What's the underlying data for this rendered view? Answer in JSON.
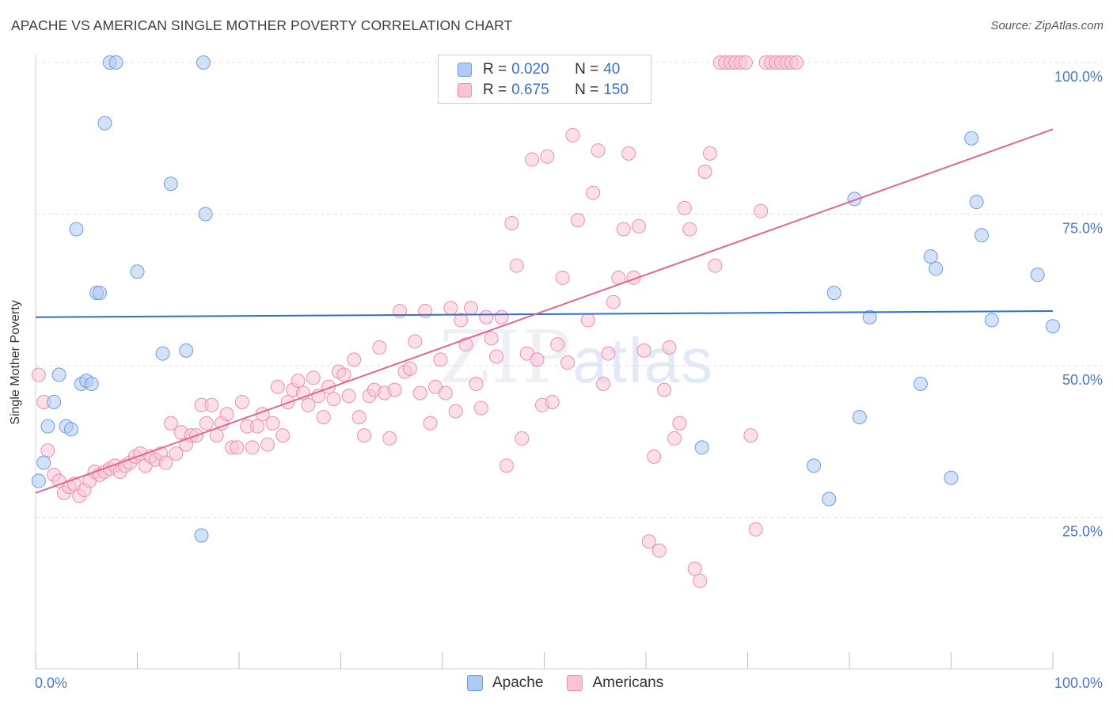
{
  "title": "APACHE VS AMERICAN SINGLE MOTHER POVERTY CORRELATION CHART",
  "source": "Source: ZipAtlas.com",
  "watermark": {
    "zip": "ZIP",
    "atlas": "atlas"
  },
  "legend": {
    "r_label": "R =",
    "n_label": "N =",
    "rows": [
      {
        "name": "Apache",
        "r": "0.020",
        "n": "40",
        "fill": "#aecbf3",
        "stroke": "#6f9ce0"
      },
      {
        "name": "Americans",
        "r": "0.675",
        "n": "150",
        "fill": "#f9c4d5",
        "stroke": "#ec8fae"
      }
    ]
  },
  "chart_data": {
    "type": "scatter",
    "title": "APACHE VS AMERICAN SINGLE MOTHER POVERTY CORRELATION CHART",
    "xlabel": "",
    "ylabel": "Single Mother Poverty",
    "xlim": [
      0,
      100
    ],
    "ylim": [
      0,
      100
    ],
    "x_tick_labels": [
      "0.0%",
      "100.0%"
    ],
    "y_tick_labels": [
      {
        "value": 25,
        "label": "25.0%"
      },
      {
        "value": 50,
        "label": "50.0%"
      },
      {
        "value": 75,
        "label": "75.0%"
      },
      {
        "value": 100,
        "label": "100.0%"
      }
    ],
    "grid": "horizontal dashed",
    "legend_placement": "top-center",
    "series": [
      {
        "name": "Apache",
        "color": "#6f9ce0",
        "fill": "#aecbf3",
        "trend": {
          "x": [
            0,
            100
          ],
          "y": [
            58.0,
            59.0
          ],
          "color": "#2e6fd0"
        },
        "points": [
          [
            0.3,
            31.0
          ],
          [
            0.8,
            34.0
          ],
          [
            1.2,
            40.0
          ],
          [
            1.8,
            44.0
          ],
          [
            2.3,
            48.5
          ],
          [
            3.0,
            40.0
          ],
          [
            3.5,
            39.5
          ],
          [
            4.5,
            47.0
          ],
          [
            5.0,
            47.5
          ],
          [
            5.5,
            47.0
          ],
          [
            4.0,
            72.5
          ],
          [
            6.0,
            62.0
          ],
          [
            6.3,
            62.0
          ],
          [
            6.8,
            90.0
          ],
          [
            7.3,
            100.0
          ],
          [
            7.9,
            100.0
          ],
          [
            10.0,
            65.5
          ],
          [
            12.5,
            52.0
          ],
          [
            13.3,
            80.0
          ],
          [
            14.8,
            52.5
          ],
          [
            16.5,
            100.0
          ],
          [
            16.7,
            75.0
          ],
          [
            16.3,
            22.0
          ],
          [
            65.5,
            36.5
          ],
          [
            76.5,
            33.5
          ],
          [
            78.0,
            28.0
          ],
          [
            78.5,
            62.0
          ],
          [
            80.5,
            77.5
          ],
          [
            81.0,
            41.5
          ],
          [
            82.0,
            58.0
          ],
          [
            87.0,
            47.0
          ],
          [
            88.0,
            68.0
          ],
          [
            88.5,
            66.0
          ],
          [
            90.0,
            31.5
          ],
          [
            92.0,
            87.5
          ],
          [
            92.5,
            77.0
          ],
          [
            93.0,
            71.5
          ],
          [
            94.0,
            57.5
          ],
          [
            98.5,
            65.0
          ],
          [
            100.0,
            56.5
          ]
        ]
      },
      {
        "name": "Americans",
        "color": "#ec8fae",
        "fill": "#f9c4d5",
        "trend": {
          "x": [
            0,
            100
          ],
          "y": [
            29.0,
            89.0
          ],
          "color": "#e46592"
        },
        "points": [
          [
            0.3,
            48.5
          ],
          [
            0.8,
            44.0
          ],
          [
            1.2,
            36.0
          ],
          [
            1.8,
            32.0
          ],
          [
            2.3,
            31.0
          ],
          [
            2.8,
            29.0
          ],
          [
            3.3,
            30.0
          ],
          [
            3.8,
            30.5
          ],
          [
            4.3,
            28.5
          ],
          [
            4.8,
            29.5
          ],
          [
            5.3,
            31.0
          ],
          [
            5.8,
            32.5
          ],
          [
            6.3,
            32.0
          ],
          [
            6.8,
            32.5
          ],
          [
            7.3,
            33.0
          ],
          [
            7.8,
            33.5
          ],
          [
            8.3,
            32.5
          ],
          [
            8.8,
            33.5
          ],
          [
            9.3,
            34.0
          ],
          [
            9.8,
            35.0
          ],
          [
            10.3,
            35.5
          ],
          [
            10.8,
            33.5
          ],
          [
            11.3,
            35.0
          ],
          [
            11.8,
            34.5
          ],
          [
            12.3,
            35.5
          ],
          [
            12.8,
            34.0
          ],
          [
            13.3,
            40.5
          ],
          [
            13.8,
            35.5
          ],
          [
            14.3,
            39.0
          ],
          [
            14.8,
            37.0
          ],
          [
            15.3,
            38.5
          ],
          [
            15.8,
            38.5
          ],
          [
            16.3,
            43.5
          ],
          [
            16.8,
            40.5
          ],
          [
            17.3,
            43.5
          ],
          [
            17.8,
            38.5
          ],
          [
            18.3,
            40.5
          ],
          [
            18.8,
            42.0
          ],
          [
            19.3,
            36.5
          ],
          [
            19.8,
            36.5
          ],
          [
            20.3,
            44.0
          ],
          [
            20.8,
            40.0
          ],
          [
            21.3,
            36.5
          ],
          [
            21.8,
            40.0
          ],
          [
            22.3,
            42.0
          ],
          [
            22.8,
            37.0
          ],
          [
            23.3,
            40.5
          ],
          [
            23.8,
            46.5
          ],
          [
            24.3,
            38.5
          ],
          [
            24.8,
            44.0
          ],
          [
            25.3,
            46.0
          ],
          [
            25.8,
            47.5
          ],
          [
            26.3,
            45.5
          ],
          [
            26.8,
            43.5
          ],
          [
            27.3,
            48.0
          ],
          [
            27.8,
            45.0
          ],
          [
            28.3,
            41.5
          ],
          [
            28.8,
            46.5
          ],
          [
            29.3,
            44.5
          ],
          [
            29.8,
            49.0
          ],
          [
            30.3,
            48.5
          ],
          [
            30.8,
            45.0
          ],
          [
            31.3,
            51.0
          ],
          [
            31.8,
            41.5
          ],
          [
            32.3,
            38.5
          ],
          [
            32.8,
            45.0
          ],
          [
            33.3,
            46.0
          ],
          [
            33.8,
            53.0
          ],
          [
            34.3,
            45.5
          ],
          [
            34.8,
            38.0
          ],
          [
            35.3,
            46.0
          ],
          [
            35.8,
            59.0
          ],
          [
            36.3,
            49.0
          ],
          [
            36.8,
            49.5
          ],
          [
            37.3,
            54.0
          ],
          [
            37.8,
            45.5
          ],
          [
            38.3,
            59.0
          ],
          [
            38.8,
            40.5
          ],
          [
            39.3,
            46.5
          ],
          [
            39.8,
            51.0
          ],
          [
            40.3,
            45.5
          ],
          [
            40.8,
            59.5
          ],
          [
            41.3,
            42.5
          ],
          [
            41.8,
            57.5
          ],
          [
            42.3,
            53.5
          ],
          [
            42.8,
            59.5
          ],
          [
            43.3,
            47.0
          ],
          [
            43.8,
            43.0
          ],
          [
            44.3,
            58.0
          ],
          [
            44.8,
            54.5
          ],
          [
            45.3,
            51.5
          ],
          [
            45.8,
            58.0
          ],
          [
            46.3,
            33.5
          ],
          [
            46.8,
            73.5
          ],
          [
            47.3,
            66.5
          ],
          [
            47.8,
            38.0
          ],
          [
            48.3,
            52.0
          ],
          [
            48.8,
            84.0
          ],
          [
            49.3,
            51.0
          ],
          [
            49.8,
            43.5
          ],
          [
            50.3,
            84.5
          ],
          [
            50.8,
            44.0
          ],
          [
            51.3,
            53.5
          ],
          [
            51.8,
            64.5
          ],
          [
            52.3,
            50.5
          ],
          [
            52.8,
            88.0
          ],
          [
            53.3,
            74.0
          ],
          [
            53.8,
            100.0
          ],
          [
            54.3,
            57.5
          ],
          [
            54.8,
            78.5
          ],
          [
            55.3,
            85.5
          ],
          [
            55.8,
            47.0
          ],
          [
            56.3,
            52.0
          ],
          [
            56.8,
            60.5
          ],
          [
            57.3,
            64.5
          ],
          [
            57.8,
            72.5
          ],
          [
            58.3,
            85.0
          ],
          [
            58.8,
            64.5
          ],
          [
            59.3,
            73.0
          ],
          [
            59.8,
            52.5
          ],
          [
            60.3,
            21.0
          ],
          [
            60.8,
            35.0
          ],
          [
            61.3,
            19.5
          ],
          [
            61.8,
            46.0
          ],
          [
            62.3,
            53.0
          ],
          [
            62.8,
            38.0
          ],
          [
            63.3,
            40.5
          ],
          [
            63.8,
            76.0
          ],
          [
            64.3,
            72.5
          ],
          [
            64.8,
            16.5
          ],
          [
            65.3,
            14.5
          ],
          [
            65.8,
            82.0
          ],
          [
            66.3,
            85.0
          ],
          [
            66.8,
            66.5
          ],
          [
            67.3,
            100.0
          ],
          [
            67.8,
            100.0
          ],
          [
            68.3,
            100.0
          ],
          [
            68.8,
            100.0
          ],
          [
            69.3,
            100.0
          ],
          [
            69.8,
            100.0
          ],
          [
            70.3,
            38.5
          ],
          [
            70.8,
            23.0
          ],
          [
            71.3,
            75.5
          ],
          [
            71.8,
            100.0
          ],
          [
            72.3,
            100.0
          ],
          [
            72.8,
            100.0
          ],
          [
            73.3,
            100.0
          ],
          [
            73.8,
            100.0
          ],
          [
            74.3,
            100.0
          ],
          [
            74.8,
            100.0
          ]
        ]
      }
    ]
  }
}
